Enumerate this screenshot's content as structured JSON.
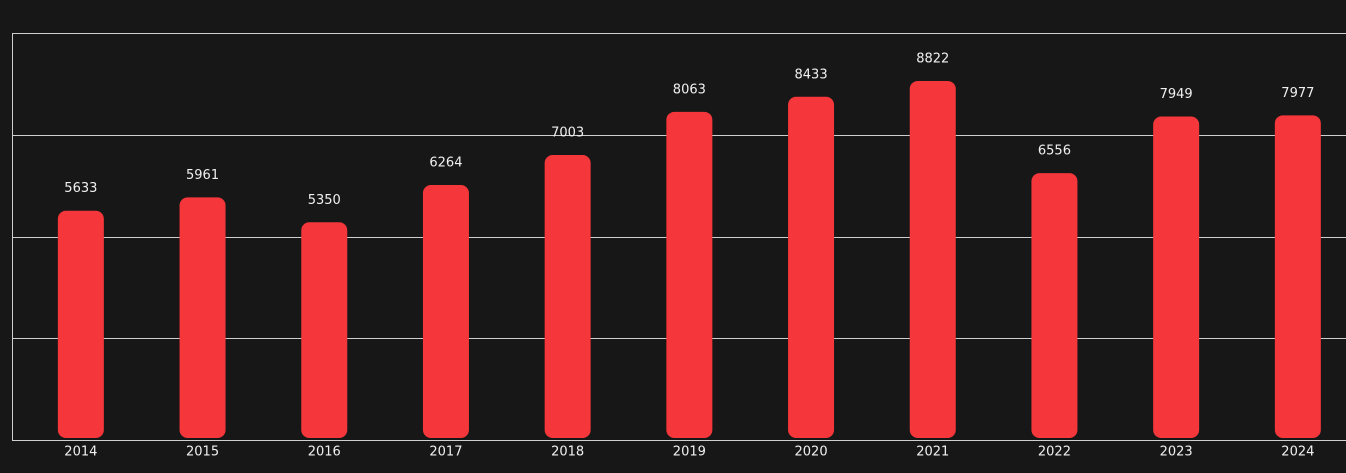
{
  "chart_data": {
    "type": "bar",
    "categories": [
      "2014",
      "2015",
      "2016",
      "2017",
      "2018",
      "2019",
      "2020",
      "2021",
      "2022",
      "2023",
      "2024"
    ],
    "values": [
      5633,
      5961,
      5350,
      6264,
      7003,
      8063,
      8433,
      8822,
      6556,
      7949,
      7977
    ],
    "color": "#f5363a",
    "ylim": [
      0,
      10000
    ],
    "yticks": [
      2500,
      5000,
      7500,
      10000
    ],
    "grid": true
  }
}
